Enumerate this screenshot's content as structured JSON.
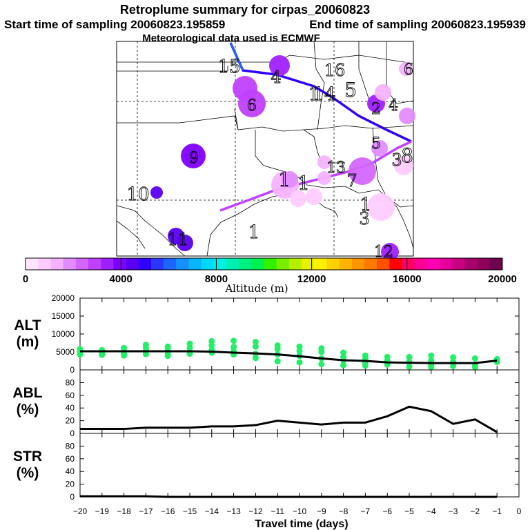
{
  "header": {
    "title": "Retroplume summary for cirpas_20060823",
    "start_label": "Start time of sampling 20060823.195859",
    "end_label": "End time of sampling 20060823.195939",
    "met_label": "Meteorological data used is ECMWF"
  },
  "colorbar": {
    "label": "Altitude (m)",
    "ticks": [
      "0",
      "4000",
      "8000",
      "12000",
      "16000",
      "20000"
    ],
    "range": [
      0,
      20000
    ],
    "colors": [
      "#ffe6ff",
      "#ffccff",
      "#f5b3ff",
      "#e28cff",
      "#d466ff",
      "#c040ff",
      "#a020ff",
      "#8000ff",
      "#5a00f0",
      "#3000ff",
      "#2a38ff",
      "#1e64ff",
      "#1490ff",
      "#0ab4ff",
      "#00d8ff",
      "#00f0e6",
      "#00f0b4",
      "#00f082",
      "#00f050",
      "#32f000",
      "#78f000",
      "#b4f000",
      "#e6f000",
      "#fff000",
      "#ffd200",
      "#ffb400",
      "#ff9600",
      "#ff7800",
      "#ff5000",
      "#ff0000",
      "#ff0064",
      "#ff0096",
      "#ff00b4",
      "#e6009a",
      "#c80082",
      "#aa006e",
      "#8c005a",
      "#700050"
    ]
  },
  "map": {
    "labels": [
      {
        "id": "1",
        "alt": 0
      },
      {
        "id": "1",
        "alt": 2500
      },
      {
        "id": "1",
        "alt": 2500
      },
      {
        "id": "4",
        "alt": 3800
      },
      {
        "id": "5",
        "alt": 2000
      },
      {
        "id": "5",
        "alt": 1500
      },
      {
        "id": "6",
        "alt": 3000
      },
      {
        "id": "6",
        "alt": 3200
      },
      {
        "id": "7",
        "alt": 4500
      },
      {
        "id": "8",
        "alt": 3500
      },
      {
        "id": "9",
        "alt": 4000
      },
      {
        "id": "10",
        "alt": 4800
      },
      {
        "id": "11",
        "alt": 5200
      },
      {
        "id": "12",
        "alt": 3800
      },
      {
        "id": "13",
        "alt": 0
      },
      {
        "id": "14",
        "alt": 0
      },
      {
        "id": "15",
        "alt": 0
      },
      {
        "id": "16",
        "alt": 2500
      },
      {
        "id": "2",
        "alt": 800
      },
      {
        "id": "3",
        "alt": 400
      },
      {
        "id": "1",
        "alt": 1500
      },
      {
        "id": "1",
        "alt": 300
      },
      {
        "id": "4",
        "alt": 0
      },
      {
        "id": "3",
        "alt": 800
      }
    ]
  },
  "chart_data": [
    {
      "type": "scatter",
      "name": "ALT",
      "ylabel_lines": [
        "ALT",
        "(m)"
      ],
      "ylim": [
        0,
        20000
      ],
      "y_ticks": [
        "0",
        "5000",
        "10000",
        "15000",
        "20000"
      ],
      "x": [
        -20,
        -19,
        -18,
        -17,
        -16,
        -15,
        -14,
        -13,
        -12,
        -11,
        -10,
        -9,
        -8,
        -7,
        -6,
        -5,
        -4,
        -3,
        -2,
        -1
      ],
      "line_values": [
        5200,
        5200,
        5200,
        5200,
        5200,
        5200,
        5100,
        4800,
        4600,
        4300,
        3800,
        3200,
        2700,
        2500,
        2100,
        2000,
        1900,
        1900,
        1900,
        2600
      ],
      "points": [
        [
          -20,
          5800
        ],
        [
          -20,
          5000
        ],
        [
          -20,
          4300
        ],
        [
          -19,
          5500
        ],
        [
          -19,
          4700
        ],
        [
          -19,
          4200
        ],
        [
          -18,
          6100
        ],
        [
          -18,
          5300
        ],
        [
          -18,
          4600
        ],
        [
          -18,
          4000
        ],
        [
          -17,
          7000
        ],
        [
          -17,
          6000
        ],
        [
          -17,
          5200
        ],
        [
          -17,
          4400
        ],
        [
          -16,
          6500
        ],
        [
          -16,
          5500
        ],
        [
          -16,
          4500
        ],
        [
          -16,
          3900
        ],
        [
          -15,
          7300
        ],
        [
          -15,
          6100
        ],
        [
          -15,
          5000
        ],
        [
          -15,
          4500
        ],
        [
          -14,
          8000
        ],
        [
          -14,
          6800
        ],
        [
          -14,
          5600
        ],
        [
          -14,
          4800
        ],
        [
          -13,
          8100
        ],
        [
          -13,
          6400
        ],
        [
          -13,
          5200
        ],
        [
          -13,
          4300
        ],
        [
          -12,
          7800
        ],
        [
          -12,
          6500
        ],
        [
          -12,
          4500
        ],
        [
          -12,
          3300
        ],
        [
          -11,
          6800
        ],
        [
          -11,
          5800
        ],
        [
          -11,
          4300
        ],
        [
          -11,
          2400
        ],
        [
          -10,
          6500
        ],
        [
          -10,
          5300
        ],
        [
          -10,
          3900
        ],
        [
          -10,
          2100
        ],
        [
          -9,
          6000
        ],
        [
          -9,
          5000
        ],
        [
          -9,
          3200
        ],
        [
          -9,
          1600
        ],
        [
          -8,
          4800
        ],
        [
          -8,
          3600
        ],
        [
          -8,
          2700
        ],
        [
          -8,
          1300
        ],
        [
          -7,
          4000
        ],
        [
          -7,
          3100
        ],
        [
          -7,
          2100
        ],
        [
          -7,
          1200
        ],
        [
          -6,
          3600
        ],
        [
          -6,
          2600
        ],
        [
          -6,
          1500
        ],
        [
          -5,
          3600
        ],
        [
          -5,
          2200
        ],
        [
          -5,
          900
        ],
        [
          -4,
          4000
        ],
        [
          -4,
          2600
        ],
        [
          -4,
          1500
        ],
        [
          -4,
          800
        ],
        [
          -3,
          3500
        ],
        [
          -3,
          2200
        ],
        [
          -3,
          1100
        ],
        [
          -2,
          3200
        ],
        [
          -2,
          1500
        ],
        [
          -2,
          700
        ],
        [
          -1,
          3000
        ],
        [
          -1,
          2500
        ],
        [
          -1,
          2200
        ]
      ],
      "xlim": [
        -20,
        0
      ]
    },
    {
      "type": "line",
      "name": "ABL",
      "ylabel_lines": [
        "ABL",
        "(%)"
      ],
      "ylim": [
        0,
        100
      ],
      "y_ticks": [
        "0",
        "20",
        "40",
        "60",
        "80"
      ],
      "x": [
        -20,
        -19,
        -18,
        -17,
        -16,
        -15,
        -14,
        -13,
        -12,
        -11,
        -10,
        -9,
        -8,
        -7,
        -6,
        -5,
        -4,
        -3,
        -2,
        -1
      ],
      "values": [
        7,
        7,
        7,
        9,
        9,
        9,
        11,
        11,
        13,
        20,
        17,
        14,
        17,
        17,
        27,
        42,
        35,
        15,
        22,
        2
      ],
      "xlim": [
        -20,
        0
      ]
    },
    {
      "type": "line",
      "name": "STR",
      "ylabel_lines": [
        "STR",
        "(%)"
      ],
      "ylim": [
        0,
        100
      ],
      "y_ticks": [
        "0",
        "20",
        "40",
        "60",
        "80"
      ],
      "x": [
        -20,
        -19,
        -18,
        -17,
        -16,
        -15,
        -14,
        -13,
        -12,
        -11,
        -10,
        -9,
        -8,
        -7,
        -6,
        -5,
        -4,
        -3,
        -2,
        -1
      ],
      "values": [
        1,
        1,
        1,
        1,
        0,
        0,
        0,
        0,
        0,
        0,
        0,
        0,
        0,
        0,
        0,
        0,
        0,
        0,
        0,
        0
      ],
      "xlim": [
        -20,
        0
      ]
    }
  ],
  "x_axis": {
    "title": "Travel time (days)",
    "ticks": [
      "−20",
      "−19",
      "−18",
      "−17",
      "−16",
      "−15",
      "−14",
      "−13",
      "−12",
      "−11",
      "−10",
      "−9",
      "−8",
      "−7",
      "−6",
      "−5",
      "−4",
      "−3",
      "−2",
      "−1",
      "0"
    ]
  }
}
